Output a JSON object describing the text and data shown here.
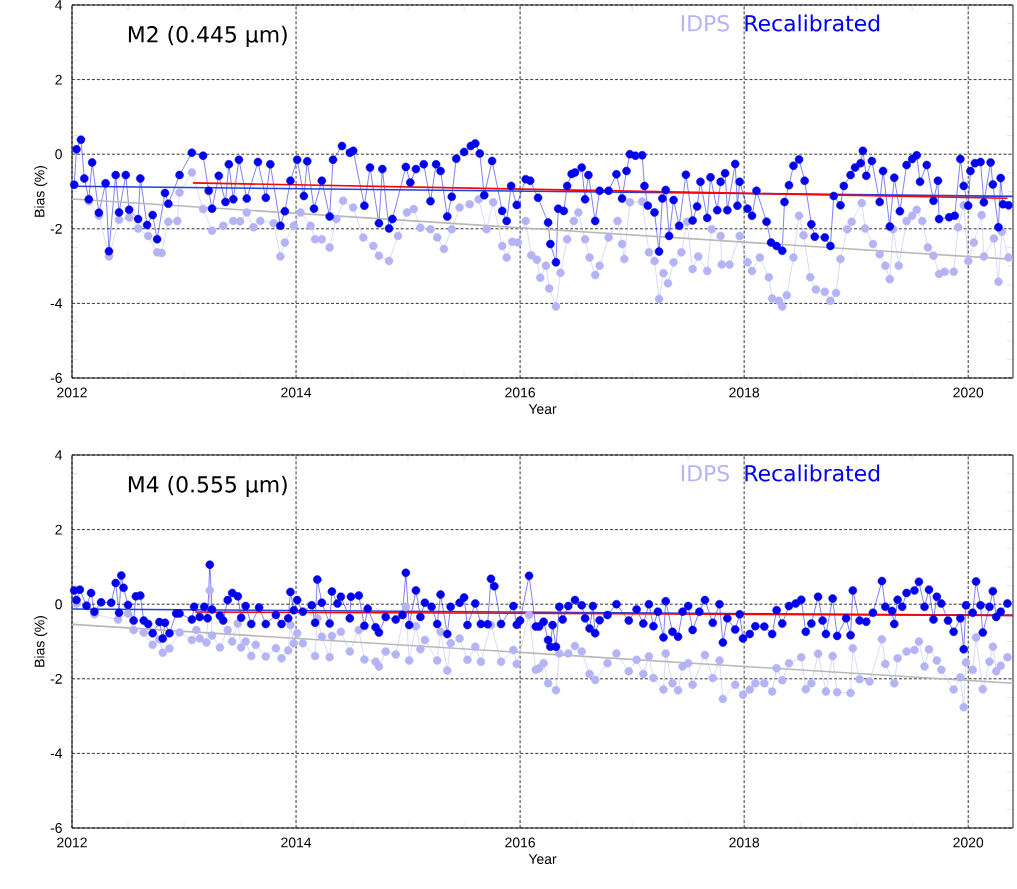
{
  "chart_data": [
    {
      "type": "line",
      "title": "M2 (0.445 µm)",
      "xlabel": "Year",
      "ylabel": "Bias (%)",
      "xlim": [
        2012,
        2020.4
      ],
      "ylim": [
        -6,
        4
      ],
      "xticks": [
        2012,
        2014,
        2016,
        2018,
        2020
      ],
      "yticks": [
        -6,
        -4,
        -2,
        0,
        2,
        4
      ],
      "grid": true,
      "legend": "top right",
      "marker": "circle",
      "series": [
        {
          "name": "IDPS",
          "color": "#b4b4f5",
          "x": [
            2012.15,
            2012.24,
            2012.33,
            2012.42,
            2012.51,
            2012.59,
            2012.68,
            2012.76,
            2012.8,
            2012.86,
            2012.94,
            2012.96,
            2013.07,
            2013.17,
            2013.25,
            2013.35,
            2013.44,
            2013.5,
            2013.56,
            2013.62,
            2013.68,
            2013.8,
            2013.86,
            2013.9,
            2013.98,
            2014.04,
            2014.13,
            2014.17,
            2014.23,
            2014.3,
            2014.36,
            2014.42,
            2014.51,
            2014.6,
            2014.69,
            2014.74,
            2014.83,
            2014.91,
            2014.99,
            2015.05,
            2015.11,
            2015.2,
            2015.26,
            2015.32,
            2015.39,
            2015.46,
            2015.55,
            2015.63,
            2015.7,
            2015.76,
            2015.84,
            2015.88,
            2015.93,
            2015.98,
            2016.05,
            2016.1,
            2016.15,
            2016.18,
            2016.23,
            2016.26,
            2016.32,
            2016.36,
            2016.42,
            2016.48,
            2016.52,
            2016.58,
            2016.62,
            2016.67,
            2016.71,
            2016.79,
            2016.87,
            2016.91,
            2016.93,
            2016.98,
            2017.09,
            2017.15,
            2017.2,
            2017.24,
            2017.28,
            2017.32,
            2017.37,
            2017.44,
            2017.49,
            2017.54,
            2017.59,
            2017.67,
            2017.71,
            2017.79,
            2017.8,
            2017.87,
            2017.96,
            2018.03,
            2018.07,
            2018.14,
            2018.22,
            2018.25,
            2018.31,
            2018.34,
            2018.38,
            2018.44,
            2018.49,
            2018.53,
            2018.59,
            2018.64,
            2018.72,
            2018.77,
            2018.82,
            2018.86,
            2018.92,
            2018.96,
            2019.05,
            2019.08,
            2019.15,
            2019.21,
            2019.26,
            2019.3,
            2019.33,
            2019.38,
            2019.45,
            2019.5,
            2019.54,
            2019.59,
            2019.64,
            2019.69,
            2019.74,
            2019.79,
            2019.87,
            2019.91,
            2019.96,
            2020.0,
            2020.05,
            2020.12,
            2020.14,
            2020.23,
            2020.27,
            2020.3,
            2020.36
          ],
          "values": [
            -1.26,
            -1.65,
            -2.74,
            -1.76,
            -1.7,
            -1.99,
            -2.19,
            -2.63,
            -2.65,
            -1.81,
            -1.79,
            -1.03,
            -0.49,
            -1.47,
            -2.05,
            -1.92,
            -1.79,
            -1.8,
            -1.56,
            -1.96,
            -1.79,
            -1.85,
            -2.74,
            -2.37,
            -1.92,
            -1.56,
            -1.92,
            -2.28,
            -2.28,
            -2.5,
            -1.74,
            -1.25,
            -1.43,
            -2.23,
            -2.46,
            -2.72,
            -2.86,
            -2.19,
            -1.56,
            -1.47,
            -1.97,
            -2.01,
            -2.23,
            -2.54,
            -2.01,
            -1.43,
            -1.34,
            -1.21,
            -2.01,
            -1.29,
            -2.46,
            -2.77,
            -2.35,
            -2.37,
            -1.79,
            -2.71,
            -2.83,
            -3.31,
            -2.99,
            -3.6,
            -4.08,
            -3.18,
            -2.28,
            -1.79,
            -1.56,
            -2.28,
            -2.77,
            -3.24,
            -2.99,
            -2.23,
            -1.79,
            -2.41,
            -2.81,
            -1.29,
            -1.27,
            -2.63,
            -2.86,
            -3.88,
            -3.19,
            -3.46,
            -2.9,
            -2.63,
            -1.81,
            -3.08,
            -2.74,
            -3.13,
            -2.01,
            -2.19,
            -2.96,
            -2.96,
            -2.19,
            -2.9,
            -3.13,
            -2.77,
            -3.3,
            -3.87,
            -3.93,
            -4.08,
            -3.78,
            -2.77,
            -1.65,
            -2.17,
            -3.3,
            -3.63,
            -3.69,
            -3.93,
            -3.72,
            -2.81,
            -2.01,
            -1.81,
            -1.31,
            -1.99,
            -2.41,
            -2.68,
            -2.99,
            -3.35,
            -2.01,
            -2.99,
            -1.79,
            -1.65,
            -1.49,
            -1.79,
            -2.5,
            -2.72,
            -3.21,
            -3.15,
            -3.15,
            -1.96,
            -1.37,
            -2.86,
            -2.37,
            -1.63,
            -2.74,
            -2.26,
            -3.42,
            -2.08,
            -2.77
          ]
        },
        {
          "name": "Recalibrated",
          "color": "#0000ee",
          "x": [
            2012.02,
            2012.04,
            2012.08,
            2012.11,
            2012.15,
            2012.18,
            2012.24,
            2012.3,
            2012.33,
            2012.39,
            2012.42,
            2012.48,
            2012.51,
            2012.59,
            2012.61,
            2012.67,
            2012.72,
            2012.76,
            2012.83,
            2012.86,
            2012.96,
            2013.07,
            2013.17,
            2013.22,
            2013.25,
            2013.31,
            2013.37,
            2013.4,
            2013.44,
            2013.49,
            2013.56,
            2013.66,
            2013.73,
            2013.77,
            2013.86,
            2013.9,
            2013.95,
            2014.01,
            2014.07,
            2014.1,
            2014.16,
            2014.23,
            2014.3,
            2014.33,
            2014.41,
            2014.48,
            2014.51,
            2014.61,
            2014.66,
            2014.74,
            2014.77,
            2014.83,
            2014.86,
            2014.98,
            2015.02,
            2015.07,
            2015.14,
            2015.2,
            2015.25,
            2015.29,
            2015.35,
            2015.39,
            2015.43,
            2015.5,
            2015.56,
            2015.6,
            2015.64,
            2015.68,
            2015.75,
            2015.84,
            2015.88,
            2015.92,
            2015.97,
            2016.05,
            2016.09,
            2016.16,
            2016.25,
            2016.27,
            2016.32,
            2016.34,
            2016.39,
            2016.42,
            2016.46,
            2016.49,
            2016.55,
            2016.58,
            2016.61,
            2016.67,
            2016.71,
            2016.79,
            2016.86,
            2016.91,
            2016.95,
            2016.98,
            2017.03,
            2017.09,
            2017.11,
            2017.14,
            2017.2,
            2017.24,
            2017.27,
            2017.3,
            2017.33,
            2017.37,
            2017.42,
            2017.48,
            2017.54,
            2017.58,
            2017.61,
            2017.67,
            2017.7,
            2017.76,
            2017.79,
            2017.83,
            2017.85,
            2017.92,
            2017.94,
            2017.96,
            2018.03,
            2018.07,
            2018.11,
            2018.2,
            2018.24,
            2018.29,
            2018.34,
            2018.36,
            2018.4,
            2018.44,
            2018.49,
            2018.54,
            2018.6,
            2018.63,
            2018.72,
            2018.77,
            2018.8,
            2018.86,
            2018.89,
            2018.95,
            2018.99,
            2019.04,
            2019.06,
            2019.09,
            2019.14,
            2019.21,
            2019.24,
            2019.3,
            2019.34,
            2019.39,
            2019.45,
            2019.5,
            2019.54,
            2019.57,
            2019.63,
            2019.69,
            2019.73,
            2019.74,
            2019.83,
            2019.88,
            2019.93,
            2019.96,
            2020.0,
            2020.02,
            2020.06,
            2020.11,
            2020.14,
            2020.2,
            2020.22,
            2020.27,
            2020.29,
            2020.31,
            2020.36
          ],
          "values": [
            -0.82,
            0.13,
            0.39,
            -0.65,
            -1.21,
            -0.22,
            -1.57,
            -0.78,
            -2.6,
            -0.56,
            -1.56,
            -0.56,
            -1.49,
            -1.74,
            -0.65,
            -1.9,
            -1.63,
            -2.28,
            -1.04,
            -1.33,
            -0.56,
            0.04,
            -0.04,
            -0.98,
            -1.46,
            -0.58,
            -1.28,
            -0.27,
            -1.21,
            -0.15,
            -1.19,
            -0.21,
            -1.17,
            -0.27,
            -1.92,
            -1.53,
            -0.71,
            -0.15,
            -1.12,
            -0.19,
            -1.46,
            -0.71,
            -1.67,
            -0.15,
            0.22,
            0.04,
            0.09,
            -1.38,
            -0.36,
            -1.85,
            -0.4,
            -1.99,
            -1.74,
            -0.34,
            -0.76,
            -0.4,
            -0.27,
            -1.26,
            -0.27,
            -0.45,
            -1.67,
            -1.14,
            -0.12,
            0.06,
            0.22,
            0.29,
            0.02,
            -1.1,
            -0.18,
            -1.52,
            -1.79,
            -0.85,
            -1.36,
            -0.67,
            -0.71,
            -1.17,
            -1.83,
            -2.41,
            -2.9,
            -1.46,
            -1.52,
            -0.85,
            -0.53,
            -0.49,
            -0.36,
            -1.21,
            -0.56,
            -1.79,
            -0.98,
            -0.98,
            -0.54,
            -1.19,
            -0.45,
            0.0,
            -0.04,
            -0.03,
            -0.85,
            -1.38,
            -1.56,
            -2.61,
            -1.19,
            -0.96,
            -2.19,
            -1.23,
            -1.92,
            -0.55,
            -1.78,
            -1.4,
            -0.74,
            -1.71,
            -0.62,
            -1.5,
            -0.74,
            -0.51,
            -1.5,
            -0.26,
            -1.38,
            -0.74,
            -1.46,
            -1.65,
            -0.98,
            -1.81,
            -2.37,
            -2.46,
            -2.59,
            -1.28,
            -0.83,
            -0.31,
            -0.14,
            -0.71,
            -1.88,
            -2.21,
            -2.23,
            -2.46,
            -1.12,
            -1.37,
            -0.85,
            -0.56,
            -0.36,
            -0.24,
            0.09,
            -0.58,
            -0.18,
            -1.28,
            -0.45,
            -1.94,
            -0.63,
            -1.53,
            -0.29,
            -0.13,
            -0.03,
            -0.74,
            -0.29,
            -1.25,
            -0.71,
            -1.74,
            -1.69,
            -1.65,
            -0.13,
            -0.85,
            -1.38,
            -0.45,
            -0.24,
            -0.21,
            -1.29,
            -0.22,
            -0.81,
            -1.96,
            -0.64,
            -1.34,
            -1.37
          ]
        },
        {
          "type": "line",
          "marker": "none",
          "color": "#b8b8b8",
          "x": [
            2012,
            2020.4
          ],
          "values": [
            -1.2,
            -2.82
          ]
        },
        {
          "type": "line",
          "marker": "none",
          "color": "#2040e0",
          "x": [
            2012,
            2020.4
          ],
          "values": [
            -0.86,
            -1.13
          ]
        },
        {
          "type": "line",
          "marker": "none",
          "color": "#ff0000",
          "x": [
            2013.08,
            2020.35
          ],
          "values": [
            -0.77,
            -1.18
          ]
        }
      ]
    },
    {
      "type": "line",
      "title": "M4 (0.555 µm)",
      "xlabel": "Year",
      "ylabel": "Bias (%)",
      "xlim": [
        2012,
        2020.4
      ],
      "ylim": [
        -6,
        4
      ],
      "xticks": [
        2012,
        2014,
        2016,
        2018,
        2020
      ],
      "yticks": [
        -6,
        -4,
        -2,
        0,
        2,
        4
      ],
      "grid": true,
      "legend": "top right",
      "marker": "circle",
      "series": [
        {
          "name": "IDPS",
          "color": "#b4b4f5",
          "x": [
            2012.04,
            2012.2,
            2012.41,
            2012.5,
            2012.55,
            2012.64,
            2012.72,
            2012.78,
            2012.81,
            2012.87,
            2012.96,
            2013.07,
            2013.11,
            2013.14,
            2013.2,
            2013.23,
            2013.25,
            2013.32,
            2013.39,
            2013.43,
            2013.48,
            2013.51,
            2013.55,
            2013.6,
            2013.64,
            2013.73,
            2013.82,
            2013.87,
            2013.93,
            2013.95,
            2013.98,
            2014.01,
            2014.06,
            2014.17,
            2014.19,
            2014.23,
            2014.3,
            2014.32,
            2014.4,
            2014.48,
            2014.56,
            2014.61,
            2014.71,
            2014.74,
            2014.8,
            2014.89,
            2014.98,
            2015.01,
            2015.07,
            2015.11,
            2015.15,
            2015.26,
            2015.29,
            2015.35,
            2015.38,
            2015.46,
            2015.53,
            2015.6,
            2015.65,
            2015.74,
            2015.83,
            2015.94,
            2015.97,
            2016.08,
            2016.14,
            2016.17,
            2016.21,
            2016.25,
            2016.32,
            2016.35,
            2016.43,
            2016.49,
            2016.55,
            2016.62,
            2016.67,
            2016.78,
            2016.86,
            2016.97,
            2017.04,
            2017.1,
            2017.15,
            2017.19,
            2017.28,
            2017.3,
            2017.36,
            2017.41,
            2017.45,
            2017.5,
            2017.54,
            2017.65,
            2017.72,
            2017.78,
            2017.81,
            2017.92,
            2017.99,
            2018.05,
            2018.1,
            2018.18,
            2018.25,
            2018.29,
            2018.34,
            2018.4,
            2018.51,
            2018.55,
            2018.6,
            2018.66,
            2018.73,
            2018.79,
            2018.83,
            2018.95,
            2018.97,
            2019.03,
            2019.12,
            2019.23,
            2019.26,
            2019.34,
            2019.37,
            2019.45,
            2019.52,
            2019.56,
            2019.61,
            2019.65,
            2019.72,
            2019.76,
            2019.87,
            2019.93,
            2019.96,
            2019.98,
            2020.04,
            2020.07,
            2020.13,
            2020.19,
            2020.22,
            2020.25,
            2020.29,
            2020.35
          ],
          "values": [
            0.02,
            -0.27,
            -0.41,
            -0.25,
            -0.69,
            -0.76,
            -1.09,
            -0.94,
            -1.3,
            -1.19,
            -0.76,
            -0.96,
            -0.69,
            -0.92,
            -1.03,
            0.37,
            -0.84,
            -1.16,
            -0.69,
            -1.0,
            -0.52,
            -1.16,
            -1.0,
            -1.39,
            -1.09,
            -1.4,
            -1.18,
            -1.45,
            -1.24,
            -0.56,
            -1.05,
            -0.78,
            -1.05,
            -1.39,
            -0.38,
            -0.87,
            -1.42,
            -0.85,
            -0.74,
            -1.27,
            -0.69,
            -1.48,
            -1.54,
            -1.67,
            -1.27,
            -1.35,
            -0.07,
            -1.51,
            -0.59,
            -1.21,
            -0.96,
            -1.51,
            -0.74,
            -1.78,
            -1.05,
            -0.92,
            -1.49,
            -1.14,
            -1.54,
            -0.56,
            -1.54,
            -1.23,
            -1.6,
            -0.29,
            -1.76,
            -1.72,
            -1.58,
            -2.12,
            -2.31,
            -1.32,
            -1.32,
            -1.12,
            -1.27,
            -1.87,
            -2.03,
            -1.58,
            -1.32,
            -1.8,
            -1.49,
            -1.87,
            -1.4,
            -1.98,
            -2.29,
            -1.32,
            -2.12,
            -2.31,
            -1.67,
            -1.58,
            -2.16,
            -1.36,
            -1.98,
            -1.51,
            -2.54,
            -2.16,
            -2.43,
            -2.29,
            -2.12,
            -2.12,
            -2.34,
            -1.72,
            -2.04,
            -1.58,
            -1.42,
            -2.28,
            -2.12,
            -1.33,
            -2.34,
            -1.39,
            -2.36,
            -2.38,
            -1.18,
            -2.01,
            -2.07,
            -0.94,
            -1.6,
            -2.12,
            -1.45,
            -1.27,
            -1.23,
            -1.0,
            -1.67,
            -1.21,
            -1.51,
            -1.76,
            -2.29,
            -1.96,
            -2.76,
            -1.56,
            -1.76,
            -0.89,
            -2.28,
            -1.54,
            -1.14,
            -1.8,
            -1.65,
            -1.42
          ]
        },
        {
          "name": "Recalibrated",
          "color": "#0000ee",
          "x": [
            2012.02,
            2012.04,
            2012.07,
            2012.13,
            2012.17,
            2012.2,
            2012.26,
            2012.35,
            2012.39,
            2012.42,
            2012.44,
            2012.46,
            2012.5,
            2012.55,
            2012.57,
            2012.61,
            2012.64,
            2012.68,
            2012.72,
            2012.78,
            2012.81,
            2012.83,
            2012.87,
            2012.93,
            2012.96,
            2013.07,
            2013.09,
            2013.14,
            2013.18,
            2013.21,
            2013.23,
            2013.25,
            2013.32,
            2013.35,
            2013.39,
            2013.43,
            2013.48,
            2013.51,
            2013.55,
            2013.6,
            2013.67,
            2013.73,
            2013.82,
            2013.87,
            2013.93,
            2013.95,
            2013.98,
            2014.01,
            2014.06,
            2014.14,
            2014.17,
            2014.19,
            2014.23,
            2014.3,
            2014.32,
            2014.37,
            2014.4,
            2014.48,
            2014.49,
            2014.56,
            2014.61,
            2014.64,
            2014.71,
            2014.74,
            2014.8,
            2014.89,
            2014.95,
            2014.98,
            2015.01,
            2015.07,
            2015.11,
            2015.15,
            2015.21,
            2015.26,
            2015.29,
            2015.35,
            2015.38,
            2015.46,
            2015.5,
            2015.53,
            2015.6,
            2015.65,
            2015.71,
            2015.74,
            2015.77,
            2015.83,
            2015.94,
            2015.97,
            2016.0,
            2016.08,
            2016.14,
            2016.17,
            2016.21,
            2016.25,
            2016.27,
            2016.29,
            2016.32,
            2016.35,
            2016.38,
            2016.43,
            2016.49,
            2016.55,
            2016.58,
            2016.62,
            2016.65,
            2016.67,
            2016.71,
            2016.78,
            2016.86,
            2016.97,
            2017.04,
            2017.1,
            2017.15,
            2017.19,
            2017.23,
            2017.28,
            2017.3,
            2017.36,
            2017.41,
            2017.45,
            2017.5,
            2017.54,
            2017.6,
            2017.65,
            2017.72,
            2017.78,
            2017.81,
            2017.85,
            2017.92,
            2017.96,
            2017.99,
            2018.05,
            2018.1,
            2018.18,
            2018.25,
            2018.29,
            2018.34,
            2018.4,
            2018.46,
            2018.51,
            2018.55,
            2018.6,
            2018.66,
            2018.7,
            2018.73,
            2018.79,
            2018.83,
            2018.91,
            2018.95,
            2018.97,
            2019.03,
            2019.09,
            2019.15,
            2019.23,
            2019.26,
            2019.32,
            2019.34,
            2019.37,
            2019.41,
            2019.45,
            2019.52,
            2019.56,
            2019.61,
            2019.65,
            2019.69,
            2019.72,
            2019.76,
            2019.82,
            2019.87,
            2019.93,
            2019.96,
            2019.98,
            2020.04,
            2020.07,
            2020.11,
            2020.13,
            2020.19,
            2020.22,
            2020.25,
            2020.29,
            2020.35
          ],
          "values": [
            0.37,
            0.11,
            0.39,
            -0.04,
            0.3,
            -0.2,
            0.05,
            0.04,
            0.57,
            -0.23,
            0.77,
            0.44,
            -0.02,
            -0.44,
            0.21,
            0.23,
            -0.44,
            -0.53,
            -0.78,
            -0.48,
            -0.92,
            -0.5,
            -0.78,
            -0.25,
            -0.25,
            -0.41,
            -0.07,
            -0.34,
            -0.07,
            -0.38,
            1.06,
            -0.14,
            -0.31,
            -0.44,
            0.11,
            0.3,
            0.21,
            -0.36,
            -0.05,
            -0.53,
            -0.09,
            -0.53,
            -0.29,
            -0.53,
            -0.38,
            0.33,
            -0.16,
            0.11,
            -0.2,
            -0.03,
            -0.5,
            0.66,
            0.04,
            -0.52,
            0.34,
            0.02,
            0.2,
            -0.38,
            0.2,
            0.23,
            -0.58,
            -0.12,
            -0.62,
            -0.76,
            -0.34,
            -0.41,
            -0.29,
            0.84,
            -0.56,
            0.37,
            -0.34,
            0.04,
            -0.07,
            -0.53,
            0.26,
            -0.8,
            -0.07,
            0.04,
            0.18,
            -0.56,
            0.02,
            -0.53,
            -0.54,
            0.68,
            0.48,
            -0.53,
            -0.05,
            -0.55,
            -0.44,
            0.76,
            -0.6,
            -0.6,
            -0.47,
            -0.96,
            -1.14,
            -0.56,
            -1.14,
            -0.07,
            -0.41,
            -0.05,
            0.11,
            -0.03,
            -0.38,
            -0.65,
            -0.05,
            -0.78,
            -0.43,
            -0.29,
            0.0,
            -0.44,
            -0.14,
            -0.52,
            0.0,
            -0.59,
            -0.2,
            -0.89,
            0.08,
            -0.74,
            -0.87,
            -0.2,
            -0.05,
            -0.69,
            -0.2,
            0.11,
            -0.5,
            0.0,
            -1.03,
            -0.38,
            -0.68,
            -0.27,
            -0.92,
            -0.8,
            -0.59,
            -0.6,
            -0.8,
            -0.16,
            -0.52,
            -0.05,
            0.02,
            0.12,
            -0.74,
            -0.52,
            0.2,
            -0.44,
            -0.8,
            0.15,
            -0.85,
            -0.38,
            -0.83,
            0.37,
            -0.44,
            -0.47,
            -0.23,
            0.62,
            -0.07,
            -0.18,
            -0.53,
            0.12,
            -0.07,
            0.3,
            0.37,
            0.6,
            -0.07,
            0.39,
            -0.41,
            0.2,
            0.02,
            -0.44,
            -0.74,
            -0.38,
            -1.21,
            -0.03,
            -0.23,
            0.61,
            -0.03,
            -0.76,
            -0.07,
            0.35,
            -0.34,
            -0.2,
            0.02
          ]
        },
        {
          "type": "line",
          "marker": "none",
          "color": "#b8b8b8",
          "x": [
            2012,
            2020.4
          ],
          "values": [
            -0.54,
            -2.12
          ]
        },
        {
          "type": "line",
          "marker": "none",
          "color": "#2040e0",
          "x": [
            2012,
            2020.4
          ],
          "values": [
            -0.13,
            -0.3
          ]
        },
        {
          "type": "line",
          "marker": "none",
          "color": "#ff0000",
          "x": [
            2013.1,
            2020.4
          ],
          "values": [
            -0.21,
            -0.3
          ]
        }
      ]
    }
  ]
}
